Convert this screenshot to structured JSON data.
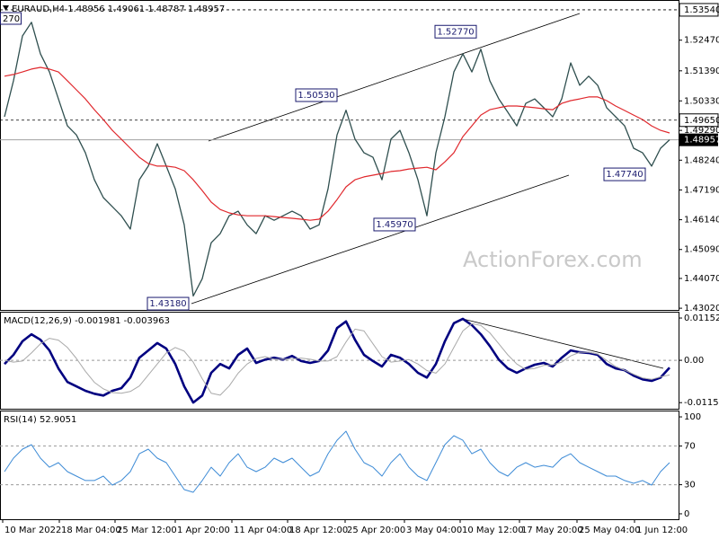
{
  "chart_data": [
    {
      "type": "line",
      "title": "EURAUD,H4 1.48956 1.49061 1.48787 1.48957",
      "watermark": "ActionForex.com",
      "edge_label": "270",
      "xlim": [
        -0.5,
        75
      ],
      "ylim": [
        1.4296,
        1.5376
      ],
      "yticks": [
        {
          "value": 1.5247,
          "label": "1.52470"
        },
        {
          "value": 1.5139,
          "label": "1.51390"
        },
        {
          "value": 1.5033,
          "label": "1.50330"
        },
        {
          "value": 1.4929,
          "label": "1.49290"
        },
        {
          "value": 1.4824,
          "label": "1.48240"
        },
        {
          "value": 1.4719,
          "label": "1.47190"
        },
        {
          "value": 1.4614,
          "label": "1.46140"
        },
        {
          "value": 1.4509,
          "label": "1.45090"
        },
        {
          "value": 1.4407,
          "label": "1.44070"
        },
        {
          "value": 1.4302,
          "label": "1.43020"
        }
      ],
      "levels": [
        {
          "value": 1.5354,
          "label": "1.53540"
        },
        {
          "value": 1.4965,
          "label": "1.49650"
        }
      ],
      "last_price": 1.48957,
      "annotations": [
        {
          "value": 1.4318,
          "label": "1.43180",
          "x": 20.5
        },
        {
          "value": 1.5053,
          "label": "1.50530",
          "x": 37
        },
        {
          "value": 1.4597,
          "label": "1.45970",
          "x": 45.7
        },
        {
          "value": 1.5277,
          "label": "1.52770",
          "x": 52.5
        },
        {
          "value": 1.4774,
          "label": "1.47740",
          "x": 71.3
        }
      ],
      "series": [
        {
          "color": "#2f4f4f",
          "width": 1.3,
          "values": [
            1.4977,
            1.5104,
            1.5262,
            1.531,
            1.5199,
            1.5135,
            1.504,
            1.4945,
            1.4913,
            1.485,
            1.4755,
            1.4692,
            1.466,
            1.4628,
            1.4581,
            1.4755,
            1.4803,
            1.4882,
            1.4803,
            1.4723,
            1.4596,
            1.4345,
            1.4406,
            1.4533,
            1.4565,
            1.4628,
            1.4644,
            1.4596,
            1.4565,
            1.4628,
            1.4612,
            1.4628,
            1.4644,
            1.4628,
            1.4581,
            1.4596,
            1.4723,
            1.4913,
            1.5,
            1.4898,
            1.485,
            1.4834,
            1.4755,
            1.4898,
            1.4929,
            1.485,
            1.4755,
            1.4628,
            1.485,
            1.4977,
            1.5135,
            1.5199,
            1.5135,
            1.5215,
            1.5104,
            1.504,
            1.4993,
            1.4945,
            1.5024,
            1.504,
            1.5009,
            1.4977,
            1.504,
            1.5167,
            1.5088,
            1.512,
            1.5088,
            1.5009,
            1.4977,
            1.4945,
            1.4866,
            1.485,
            1.4803,
            1.4866,
            1.4896
          ]
        },
        {
          "color": "#e0282d",
          "width": 1.2,
          "values": [
            1.512,
            1.5126,
            1.5135,
            1.5145,
            1.5151,
            1.5145,
            1.5135,
            1.5104,
            1.5072,
            1.504,
            1.5002,
            1.4967,
            1.4929,
            1.4898,
            1.4866,
            1.4834,
            1.4812,
            1.4803,
            1.4803,
            1.4799,
            1.4787,
            1.4755,
            1.4717,
            1.4676,
            1.465,
            1.4638,
            1.4631,
            1.4628,
            1.4628,
            1.4628,
            1.4625,
            1.4622,
            1.4619,
            1.4616,
            1.4612,
            1.4616,
            1.4644,
            1.4685,
            1.473,
            1.4755,
            1.4765,
            1.4771,
            1.4777,
            1.4784,
            1.4787,
            1.4793,
            1.4796,
            1.4799,
            1.479,
            1.4818,
            1.485,
            1.4907,
            1.4945,
            1.4983,
            1.5002,
            1.5009,
            1.5015,
            1.5015,
            1.5012,
            1.5009,
            1.5005,
            1.5002,
            1.5024,
            1.5034,
            1.504,
            1.5047,
            1.5047,
            1.5034,
            1.5015,
            1.4999,
            1.4983,
            1.4967,
            1.4945,
            1.4929,
            1.492
          ]
        }
      ]
    },
    {
      "type": "line",
      "title": "MACD(12,26,9) -0.001981 -0.003963",
      "grid": "dashed",
      "xlim": [
        -0.5,
        75
      ],
      "ylim": [
        -0.0132,
        0.013
      ],
      "yticks": [
        0.011524,
        {
          "value": 0,
          "label": "0.00"
        },
        -0.011537
      ],
      "series": [
        {
          "color": "#000080",
          "width": 2.6,
          "values": [
            -0.001,
            0.0015,
            0.0052,
            0.0071,
            0.0056,
            0.0027,
            -0.0022,
            -0.0059,
            -0.0071,
            -0.0083,
            -0.0091,
            -0.0096,
            -0.0083,
            -0.0076,
            -0.0047,
            0.0007,
            0.0027,
            0.0047,
            0.0032,
            -0.001,
            -0.0071,
            -0.0115,
            -0.0096,
            -0.0034,
            -0.001,
            -0.0022,
            0.0015,
            0.0032,
            -0.0007,
            0.0002,
            0.0007,
            0.0002,
            0.0012,
            -0.0002,
            -0.0007,
            -0.0002,
            0.0027,
            0.0088,
            0.0106,
            0.0056,
            0.0015,
            -0.0002,
            -0.0017,
            0.0015,
            0.0007,
            -0.001,
            -0.0034,
            -0.0047,
            -0.001,
            0.0052,
            0.0101,
            0.0113,
            0.0096,
            0.0071,
            0.0039,
            0.0002,
            -0.0022,
            -0.0034,
            -0.0022,
            -0.0012,
            -0.0007,
            -0.0017,
            0.0007,
            0.0027,
            0.0022,
            0.002,
            0.0015,
            -0.001,
            -0.0022,
            -0.0027,
            -0.0042,
            -0.0052,
            -0.0056,
            -0.0047,
            -0.002
          ]
        },
        {
          "color": "#a9a9a9",
          "width": 1,
          "values": [
            0.0,
            -0.0005,
            -0.0002,
            0.002,
            0.0045,
            0.006,
            0.0055,
            0.0035,
            0.0005,
            -0.003,
            -0.006,
            -0.0078,
            -0.0088,
            -0.009,
            -0.0085,
            -0.007,
            -0.004,
            -0.001,
            0.002,
            0.0035,
            0.0025,
            -0.0005,
            -0.005,
            -0.009,
            -0.0095,
            -0.007,
            -0.0035,
            -0.001,
            0.0005,
            0.001,
            0.0003,
            0.0003,
            0.0004,
            0.0006,
            0.0003,
            -0.0002,
            -0.0002,
            0.001,
            0.005,
            0.0085,
            0.008,
            0.0045,
            0.001,
            -0.0005,
            -0.0002,
            0.0002,
            -0.001,
            -0.0028,
            -0.0035,
            -0.001,
            0.0035,
            0.008,
            0.01,
            0.0095,
            0.0075,
            0.0045,
            0.0015,
            -0.001,
            -0.0025,
            -0.0022,
            -0.0014,
            -0.0012,
            -0.0005,
            0.0012,
            0.0022,
            0.0022,
            0.0017,
            0.0,
            -0.0017,
            -0.0027,
            -0.0038,
            -0.0048,
            -0.0052,
            -0.0045,
            -0.004
          ]
        }
      ]
    },
    {
      "type": "line",
      "title": "RSI(14) 52.9051",
      "grid": "dashed",
      "xlim": [
        -0.5,
        75
      ],
      "ylim": [
        -5.6,
        105.6
      ],
      "yticks": [
        100,
        70,
        30,
        0
      ],
      "xticks": [
        {
          "value": -0.2,
          "label": "10 Mar 2022"
        },
        {
          "value": 6.1,
          "label": "18 Mar 04:00"
        },
        {
          "value": 12.3,
          "label": "25 Mar 12:00"
        },
        {
          "value": 19,
          "label": "1 Apr 20:00"
        },
        {
          "value": 25.3,
          "label": "11 Apr 04:00"
        },
        {
          "value": 31.5,
          "label": "18 Apr 12:00"
        },
        {
          "value": 37.9,
          "label": "25 Apr 20:00"
        },
        {
          "value": 44.5,
          "label": "3 May 04:00"
        },
        {
          "value": 50.7,
          "label": "10 May 12:00"
        },
        {
          "value": 57.3,
          "label": "17 May 20:00"
        },
        {
          "value": 63.7,
          "label": "25 May 04:00"
        },
        {
          "value": 70.1,
          "label": "1 Jun 12:00"
        }
      ],
      "series": [
        {
          "color": "#3d8bd6",
          "width": 1,
          "values": [
            43.5,
            57.4,
            66.7,
            71.3,
            57.4,
            48.1,
            52.8,
            43.5,
            38.9,
            34.3,
            34.3,
            38.9,
            29.6,
            34.3,
            43.5,
            62.0,
            66.7,
            57.4,
            52.8,
            38.9,
            25.0,
            22.2,
            34.3,
            48.1,
            38.9,
            52.8,
            62.0,
            48.1,
            43.5,
            48.1,
            57.4,
            52.8,
            57.4,
            48.1,
            38.9,
            43.5,
            62.0,
            75.9,
            85.2,
            66.7,
            52.8,
            48.1,
            38.9,
            52.8,
            62.0,
            48.1,
            38.9,
            34.3,
            52.8,
            71.3,
            80.6,
            75.9,
            62.0,
            66.7,
            52.8,
            43.5,
            38.9,
            48.1,
            52.8,
            48.1,
            50.0,
            48.1,
            57.4,
            62.0,
            52.8,
            48.1,
            43.5,
            38.9,
            38.9,
            34.3,
            31.5,
            34.3,
            29.6,
            43.5,
            52.8
          ]
        }
      ]
    }
  ]
}
